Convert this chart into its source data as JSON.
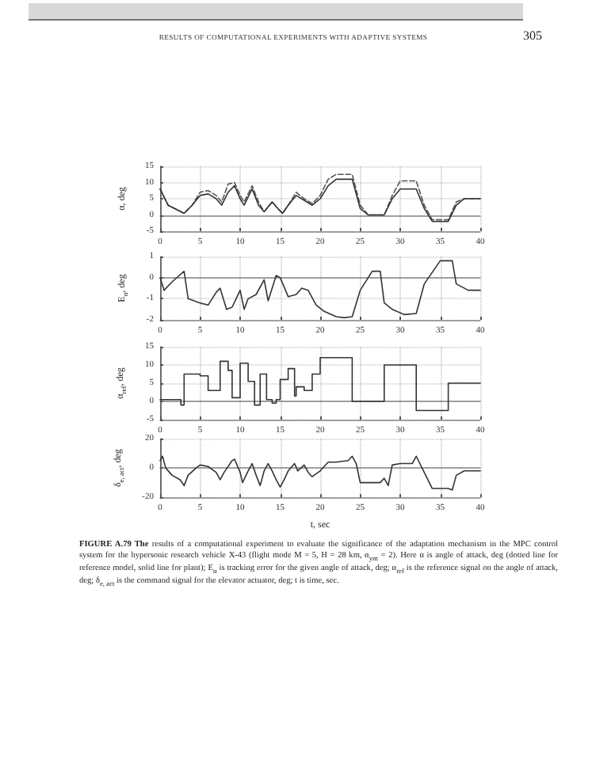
{
  "chart_data": [
    {
      "type": "line",
      "ylabel": "α, deg",
      "annotations": [
        "RESULTS OF COMPUTATIONAL EXPERIMENTS WITH ADAPTIVE SYSTEMS",
        "305"
      ],
      "grid": true,
      "xlim": [
        0,
        40
      ],
      "xticks": [
        0,
        5,
        10,
        15,
        20,
        25,
        30,
        35,
        40
      ],
      "ylim": [
        -5,
        15
      ],
      "yticks": [
        -5,
        0,
        5,
        10,
        15
      ],
      "x": [
        0,
        1,
        3,
        4,
        5,
        6,
        7,
        7.7,
        8.5,
        9.3,
        10,
        10.5,
        11.5,
        12.3,
        13,
        14,
        14.7,
        15.3,
        16,
        17,
        18,
        19,
        20,
        21,
        22,
        24,
        25,
        26,
        28,
        29,
        30,
        32,
        33,
        34,
        36,
        37,
        38,
        40
      ],
      "series": [
        {
          "color": "#555555",
          "line_style": "dashed",
          "values": [
            8,
            3,
            0.5,
            3,
            7,
            7.5,
            6,
            4,
            9.5,
            10,
            6,
            4,
            9,
            4,
            1,
            4,
            2,
            0.5,
            3,
            7,
            5,
            3.5,
            6,
            11,
            12.5,
            12.5,
            3,
            0,
            0,
            6,
            10.5,
            10.5,
            3,
            -1.5,
            -1.5,
            4,
            5,
            5
          ]
        },
        {
          "color": "#333333",
          "line_style": "solid",
          "values": [
            8,
            3,
            0.5,
            3,
            6,
            6.5,
            5,
            3,
            7,
            9,
            5,
            3,
            8,
            3,
            1,
            4,
            2,
            0.5,
            3,
            6,
            4.5,
            3,
            5,
            9,
            11,
            11,
            2,
            0,
            0,
            5,
            8,
            8,
            2,
            -2,
            -2,
            3,
            5,
            5
          ]
        }
      ]
    },
    {
      "type": "line",
      "ylabel": "E$_{α}$, deg",
      "grid": true,
      "xlim": [
        0,
        40
      ],
      "xticks": [
        0,
        5,
        10,
        15,
        20,
        25,
        30,
        35,
        40
      ],
      "ylim": [
        -2,
        1
      ],
      "yticks": [
        -2,
        -1,
        0,
        1
      ],
      "x": [
        0,
        0.5,
        1.5,
        3,
        3.5,
        5,
        6,
        7,
        7.5,
        8.3,
        9,
        9.5,
        10,
        10.5,
        11,
        12,
        13,
        13.5,
        14.5,
        15,
        16,
        17,
        17.7,
        18.5,
        19.5,
        20.5,
        22,
        23,
        24,
        25,
        26.5,
        27.5,
        28,
        29,
        30.5,
        32,
        33,
        35,
        36.5,
        37,
        38.5,
        40
      ],
      "series": [
        {
          "color": "#333333",
          "line_style": "solid",
          "values": [
            0,
            -0.6,
            -0.2,
            0.3,
            -1,
            -1.2,
            -1.3,
            -0.7,
            -0.5,
            -1.5,
            -1.4,
            -1,
            -0.6,
            -1.5,
            -1,
            -0.8,
            -0.1,
            -1.1,
            0.1,
            0,
            -0.9,
            -0.8,
            -0.5,
            -0.6,
            -1.3,
            -1.6,
            -1.85,
            -1.9,
            -1.85,
            -0.6,
            0.3,
            0.3,
            -1.2,
            -1.5,
            -1.75,
            -1.7,
            -0.3,
            0.8,
            0.8,
            -0.3,
            -0.6,
            -0.6
          ]
        }
      ]
    },
    {
      "type": "step",
      "ylabel": "α$_{ref}$, deg",
      "grid": true,
      "xlim": [
        0,
        40
      ],
      "xticks": [
        0,
        5,
        10,
        15,
        20,
        25,
        30,
        35,
        40
      ],
      "ylim": [
        -5,
        15
      ],
      "yticks": [
        -5,
        0,
        5,
        10,
        15
      ],
      "x": [
        0,
        2.6,
        3,
        5,
        6,
        7.5,
        8.5,
        9,
        10,
        11,
        11.8,
        12.5,
        13.3,
        14,
        14.5,
        15,
        16,
        16.8,
        17,
        18,
        19,
        20,
        24,
        28,
        32,
        36,
        40
      ],
      "series": [
        {
          "color": "#333333",
          "line_style": "solid",
          "values": [
            0.5,
            -1,
            7.5,
            7,
            3,
            11,
            8.5,
            1,
            10.5,
            5.5,
            -1,
            7.5,
            0.5,
            -0.5,
            0.5,
            6,
            9,
            1.5,
            4,
            3,
            7.5,
            12,
            0,
            10,
            -2.5,
            5,
            5
          ]
        }
      ]
    },
    {
      "type": "line",
      "ylabel": "δ$_{e, act}$, deg",
      "xlabel": "t, sec",
      "grid": true,
      "xlim": [
        0,
        40
      ],
      "xticks": [
        0,
        5,
        10,
        15,
        20,
        25,
        30,
        35,
        40
      ],
      "ylim": [
        -20,
        20
      ],
      "yticks": [
        -20,
        0,
        20
      ],
      "annotations": [
        "FIGURE A.79 The results of a computational experiment to evaluate the significance of the adaptation mechanism in the MPC control system for the hypersonic research vehicle X-43 (flight mode M = 5, H = 28 km, α$_{ym}$ = 2). Here α is angle of attack, deg (dotted line for reference model, solid line for plant); E$_{α}$ is tracking error for the given angle of attack, deg; α$_{ref}$ is the reference signal on the angle of attack, deg; δ$_{e, act}$ is the command signal for the elevator actuator, deg; t is time, sec."
      ],
      "x": [
        0,
        0.3,
        0.7,
        1.5,
        2.5,
        3,
        3.5,
        4.5,
        5,
        6,
        7,
        7.5,
        8,
        9,
        9.3,
        10,
        10.3,
        11,
        11.5,
        12,
        12.5,
        13,
        13.5,
        14,
        14.5,
        15,
        15.5,
        16,
        16.8,
        17.2,
        18,
        18.5,
        19,
        20,
        21,
        22,
        23.5,
        24,
        24.5,
        25,
        26,
        27.5,
        28,
        28.5,
        29,
        30,
        31.5,
        32,
        33,
        34,
        36,
        36.5,
        37,
        38,
        40
      ],
      "series": [
        {
          "color": "#333333",
          "line_style": "solid",
          "values": [
            5,
            8,
            0,
            -5,
            -8,
            -12,
            -5,
            0,
            2,
            1,
            -3,
            -8,
            -3,
            5,
            6,
            -3,
            -10,
            -2,
            3,
            -5,
            -12,
            -2,
            3,
            -2,
            -8,
            -13,
            -8,
            -2,
            3,
            -2,
            2,
            -3,
            -6,
            -2,
            4,
            4,
            5,
            8,
            3,
            -10,
            -10,
            -10,
            -7,
            -12,
            2,
            3,
            3,
            8,
            -3,
            -14,
            -14,
            -15,
            -5,
            -2,
            -2
          ]
        }
      ]
    }
  ]
}
